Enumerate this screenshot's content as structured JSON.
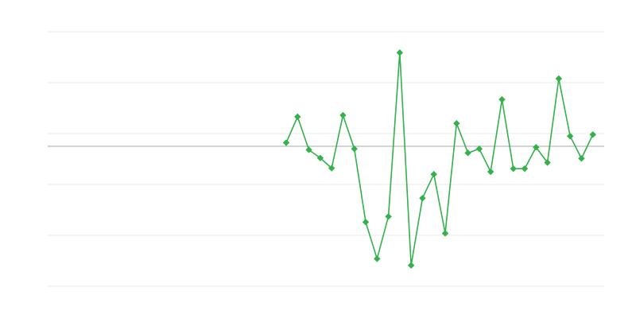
{
  "chart_data": {
    "type": "line",
    "title": "",
    "xlabel": "",
    "ylabel": "",
    "x_slots": 50,
    "x": [
      21,
      22,
      23,
      24,
      25,
      26,
      27,
      28,
      29,
      30,
      31,
      32,
      33,
      34,
      35,
      36,
      37,
      38,
      39,
      40,
      41,
      42,
      43,
      44,
      45,
      46,
      47,
      48
    ],
    "values": [
      0.07,
      0.58,
      -0.07,
      -0.23,
      -0.43,
      0.61,
      -0.05,
      -1.49,
      -2.21,
      -1.38,
      1.84,
      -2.34,
      -1.02,
      -0.55,
      -1.71,
      0.45,
      -0.13,
      -0.05,
      -0.5,
      0.92,
      -0.44,
      -0.44,
      -0.02,
      -0.32,
      1.33,
      0.2,
      -0.24,
      0.23
    ],
    "ylim": [
      -2.75,
      2.25
    ],
    "gridlines": [
      2.25,
      1.25,
      0.25,
      -0.75,
      -1.75,
      -2.75
    ],
    "zero_line": true,
    "grid": true,
    "marker": "diamond",
    "colors": {
      "series": "#33b14a",
      "grid": "#ebebeb",
      "zero": "#aaaaaa"
    }
  }
}
